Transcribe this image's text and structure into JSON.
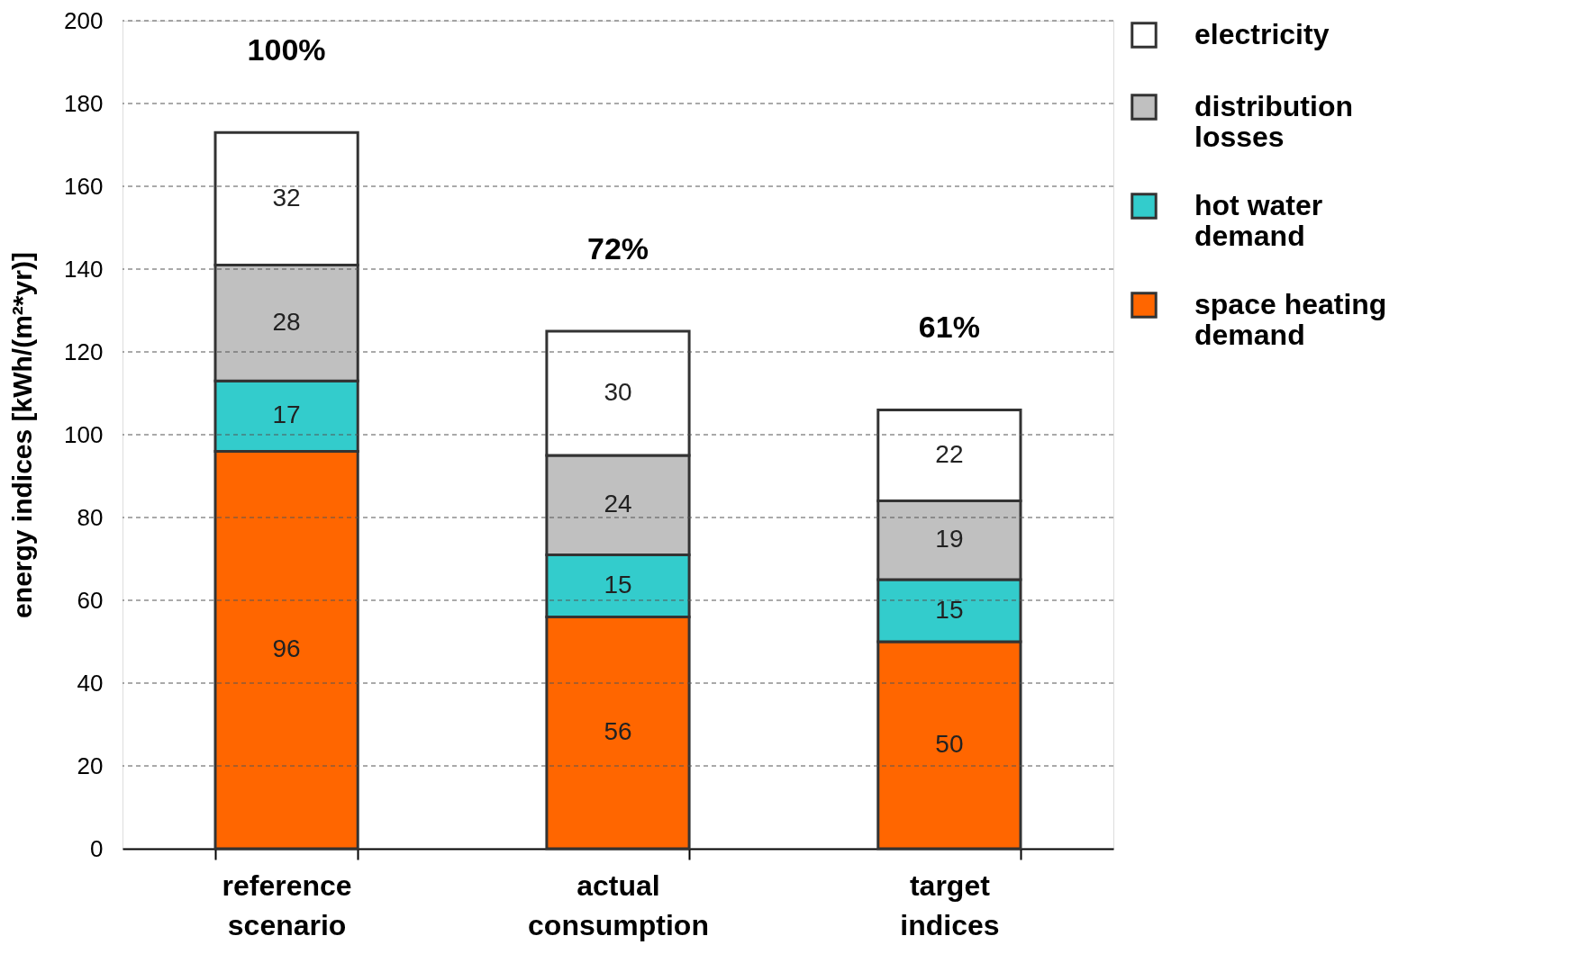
{
  "chart_data": {
    "type": "bar",
    "stacked": true,
    "ylabel": "energy indices [kWh/(m²*yr)]",
    "categories": [
      "reference scenario",
      "actual consumption",
      "target indices"
    ],
    "series": [
      {
        "name": "space heating demand",
        "color": "#ff6600",
        "values": [
          96,
          56,
          50
        ]
      },
      {
        "name": "hot water demand",
        "color": "#33cccc",
        "values": [
          17,
          15,
          15
        ]
      },
      {
        "name": "distribution losses",
        "color": "#c0c0c0",
        "values": [
          28,
          24,
          19
        ]
      },
      {
        "name": "electricity",
        "color": "#ffffff",
        "values": [
          32,
          30,
          22
        ]
      }
    ],
    "ylim": [
      0,
      200
    ],
    "yticks": [
      0,
      20,
      40,
      60,
      80,
      100,
      120,
      140,
      160,
      180,
      200
    ],
    "grid": "y",
    "legend": "right",
    "data_labels": true,
    "annotations": [
      "100%",
      "72%",
      "61%"
    ]
  }
}
